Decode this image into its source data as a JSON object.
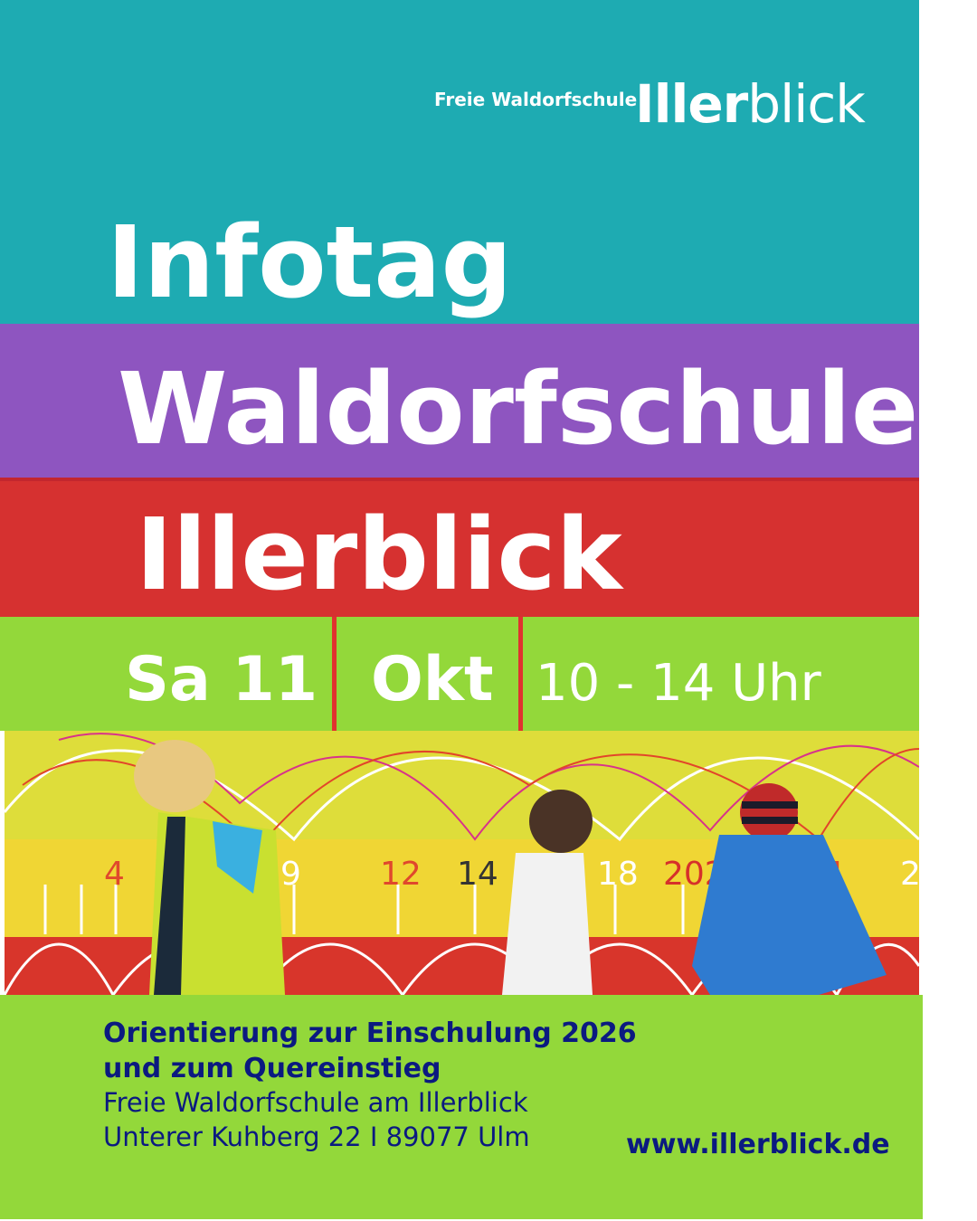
{
  "logo": {
    "prefix": "Freie Waldorfschule",
    "name_bold": "Iller",
    "name_light": "blick"
  },
  "title": {
    "line1": "Infotag",
    "line2": "Waldorfschule",
    "line3": "Illerblick"
  },
  "date": {
    "day": "Sa 11",
    "month": "Okt",
    "time": "10 - 14 Uhr"
  },
  "photo": {
    "scale_labels": [
      "4",
      "9",
      "12",
      "14",
      "18",
      "202",
      "4",
      "2"
    ]
  },
  "info": {
    "line1": "Orientierung zur Einschulung 2026",
    "line2": "und zum Quereinstieg",
    "line3": "Freie Waldorfschule am Illerblick",
    "line4": "Unterer Kuhberg 22  I 89077 Ulm",
    "url": "www.illerblick.de"
  },
  "colors": {
    "teal": "#1eabb2",
    "purple": "#8e55c0",
    "red": "#d63130",
    "green": "#93d83a",
    "navy": "#0b1a80"
  }
}
